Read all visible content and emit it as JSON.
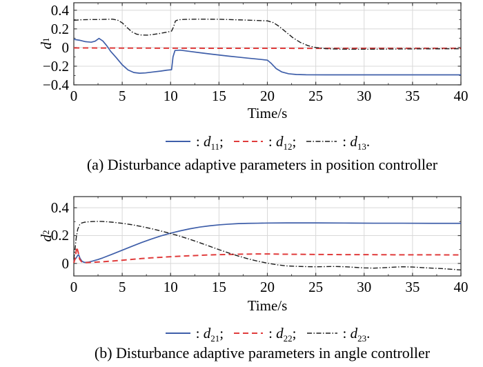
{
  "figure": {
    "background": "#ffffff"
  },
  "colors": {
    "axis": "#3a3a3a",
    "grid": "#d8d8d8",
    "text": "#000000",
    "series_blue": "#3e5ea9",
    "series_red": "#e03b3b",
    "series_black": "#1a1a1a"
  },
  "chart_data": [
    {
      "type": "line",
      "xlabel": "Time/s",
      "ylabel": "d1",
      "ylabel_base": "d",
      "ylabel_sub": "1",
      "caption": "(a) Disturbance adaptive parameters in position controller",
      "xlim": [
        0,
        40
      ],
      "ylim": [
        -0.4,
        0.48
      ],
      "xticks": [
        0,
        5,
        10,
        15,
        20,
        25,
        30,
        35,
        40
      ],
      "xtick_labels": [
        "0",
        "5",
        "10",
        "15",
        "20",
        "25",
        "30",
        "35",
        "40"
      ],
      "yticks": [
        -0.4,
        -0.2,
        0,
        0.2,
        0.4
      ],
      "ytick_labels": [
        "−0.4",
        "−0.2",
        "0",
        "0.2",
        "0.4"
      ],
      "x_minor_step": 2.5,
      "y_minor_step": 0.1,
      "grid": true,
      "legend_position": "below",
      "legend": [
        {
          "colon": ": ",
          "label": "d",
          "sub": "11",
          "punct": ";",
          "style": "solid",
          "color": "#3e5ea9"
        },
        {
          "colon": ": ",
          "label": "d",
          "sub": "12",
          "punct": ";",
          "style": "dashed",
          "color": "#e03b3b"
        },
        {
          "colon": ": ",
          "label": "d",
          "sub": "13",
          "punct": ".",
          "style": "dashdot",
          "color": "#1a1a1a"
        }
      ],
      "series": [
        {
          "name": "d11",
          "style": "solid",
          "color": "#3e5ea9",
          "width": 1.7,
          "points": [
            [
              0,
              0.088
            ],
            [
              0.6,
              0.078
            ],
            [
              1.2,
              0.063
            ],
            [
              1.8,
              0.057
            ],
            [
              2.2,
              0.068
            ],
            [
              2.6,
              0.098
            ],
            [
              3.0,
              0.07
            ],
            [
              3.4,
              0.02
            ],
            [
              3.8,
              -0.04
            ],
            [
              4.4,
              -0.11
            ],
            [
              5.0,
              -0.185
            ],
            [
              5.6,
              -0.24
            ],
            [
              6.2,
              -0.268
            ],
            [
              6.8,
              -0.275
            ],
            [
              7.4,
              -0.272
            ],
            [
              8.2,
              -0.262
            ],
            [
              9.0,
              -0.252
            ],
            [
              9.6,
              -0.243
            ],
            [
              10.1,
              -0.238
            ],
            [
              10.25,
              -0.1
            ],
            [
              10.45,
              -0.032
            ],
            [
              11,
              -0.028
            ],
            [
              12,
              -0.042
            ],
            [
              13,
              -0.055
            ],
            [
              14,
              -0.068
            ],
            [
              15,
              -0.08
            ],
            [
              16,
              -0.092
            ],
            [
              17,
              -0.103
            ],
            [
              18,
              -0.114
            ],
            [
              19,
              -0.124
            ],
            [
              20,
              -0.135
            ],
            [
              20.4,
              -0.17
            ],
            [
              20.9,
              -0.225
            ],
            [
              21.5,
              -0.262
            ],
            [
              22.2,
              -0.281
            ],
            [
              23,
              -0.289
            ],
            [
              24,
              -0.292
            ],
            [
              26,
              -0.293
            ],
            [
              30,
              -0.293
            ],
            [
              35,
              -0.293
            ],
            [
              40,
              -0.293
            ]
          ]
        },
        {
          "name": "d12",
          "style": "dashed",
          "color": "#e03b3b",
          "width": 2,
          "points": [
            [
              0,
              -0.004
            ],
            [
              5,
              -0.006
            ],
            [
              10,
              -0.007
            ],
            [
              15,
              -0.008
            ],
            [
              20,
              -0.008
            ],
            [
              25,
              -0.009
            ],
            [
              30,
              -0.009
            ],
            [
              35,
              -0.009
            ],
            [
              40,
              -0.009
            ]
          ]
        },
        {
          "name": "d13",
          "style": "dashdot",
          "color": "#1a1a1a",
          "width": 1.4,
          "points": [
            [
              0,
              0.292
            ],
            [
              0.8,
              0.298
            ],
            [
              1.6,
              0.3
            ],
            [
              2.4,
              0.3
            ],
            [
              3.2,
              0.302
            ],
            [
              4.0,
              0.304
            ],
            [
              4.5,
              0.295
            ],
            [
              5.0,
              0.265
            ],
            [
              5.5,
              0.215
            ],
            [
              6.0,
              0.168
            ],
            [
              6.5,
              0.143
            ],
            [
              7.0,
              0.134
            ],
            [
              7.6,
              0.133
            ],
            [
              8.2,
              0.14
            ],
            [
              9.0,
              0.153
            ],
            [
              9.6,
              0.165
            ],
            [
              10.1,
              0.176
            ],
            [
              10.3,
              0.22
            ],
            [
              10.5,
              0.285
            ],
            [
              10.8,
              0.298
            ],
            [
              11.5,
              0.302
            ],
            [
              13,
              0.304
            ],
            [
              15,
              0.303
            ],
            [
              17,
              0.297
            ],
            [
              19,
              0.29
            ],
            [
              20,
              0.286
            ],
            [
              20.6,
              0.268
            ],
            [
              21.2,
              0.228
            ],
            [
              21.9,
              0.168
            ],
            [
              22.6,
              0.108
            ],
            [
              23.4,
              0.055
            ],
            [
              24.2,
              0.02
            ],
            [
              25,
              0.0
            ],
            [
              26,
              -0.012
            ],
            [
              27.5,
              -0.017
            ],
            [
              30,
              -0.018
            ],
            [
              33,
              -0.016
            ],
            [
              36,
              -0.014
            ],
            [
              40,
              -0.013
            ]
          ]
        }
      ]
    },
    {
      "type": "line",
      "xlabel": "Time/s",
      "ylabel": "d2",
      "ylabel_base": "d",
      "ylabel_sub": "2",
      "caption": "(b) Disturbance adaptive parameters in angle controller",
      "xlim": [
        0,
        40
      ],
      "ylim": [
        -0.09,
        0.48
      ],
      "xticks": [
        0,
        5,
        10,
        15,
        20,
        25,
        30,
        35,
        40
      ],
      "xtick_labels": [
        "0",
        "5",
        "10",
        "15",
        "20",
        "25",
        "30",
        "35",
        "40"
      ],
      "yticks": [
        0,
        0.2,
        0.4
      ],
      "ytick_labels": [
        "0",
        "0.2",
        "0.4"
      ],
      "x_minor_step": 2.5,
      "y_minor_step": 0.1,
      "grid": true,
      "legend_position": "below",
      "legend": [
        {
          "colon": ": ",
          "label": "d",
          "sub": "21",
          "punct": ";",
          "style": "solid",
          "color": "#3e5ea9"
        },
        {
          "colon": ": ",
          "label": "d",
          "sub": "22",
          "punct": ";",
          "style": "dashed",
          "color": "#e03b3b"
        },
        {
          "colon": ": ",
          "label": "d",
          "sub": "23",
          "punct": ".",
          "style": "dashdot",
          "color": "#1a1a1a"
        }
      ],
      "series": [
        {
          "name": "d21",
          "style": "solid",
          "color": "#3e5ea9",
          "width": 1.7,
          "points": [
            [
              0,
              0.02
            ],
            [
              0.2,
              0.035
            ],
            [
              0.4,
              0.058
            ],
            [
              0.5,
              0.062
            ],
            [
              0.65,
              0.035
            ],
            [
              0.85,
              0.015
            ],
            [
              1.1,
              0.007
            ],
            [
              1.5,
              0.009
            ],
            [
              2,
              0.018
            ],
            [
              2.5,
              0.028
            ],
            [
              3,
              0.04
            ],
            [
              4,
              0.067
            ],
            [
              5,
              0.095
            ],
            [
              6,
              0.123
            ],
            [
              7,
              0.15
            ],
            [
              8,
              0.175
            ],
            [
              9,
              0.198
            ],
            [
              10,
              0.217
            ],
            [
              11,
              0.234
            ],
            [
              12,
              0.249
            ],
            [
              13,
              0.261
            ],
            [
              14,
              0.27
            ],
            [
              15,
              0.277
            ],
            [
              16,
              0.282
            ],
            [
              17,
              0.286
            ],
            [
              18,
              0.288
            ],
            [
              19,
              0.289
            ],
            [
              20,
              0.29
            ],
            [
              22,
              0.291
            ],
            [
              25,
              0.291
            ],
            [
              28,
              0.29
            ],
            [
              31,
              0.289
            ],
            [
              34,
              0.289
            ],
            [
              37,
              0.288
            ],
            [
              40,
              0.288
            ]
          ]
        },
        {
          "name": "d22",
          "style": "dashed",
          "color": "#e03b3b",
          "width": 2,
          "points": [
            [
              0,
              0.004
            ],
            [
              0.15,
              0.04
            ],
            [
              0.3,
              0.118
            ],
            [
              0.45,
              0.08
            ],
            [
              0.6,
              0.03
            ],
            [
              0.8,
              0.012
            ],
            [
              1.2,
              0.006
            ],
            [
              2,
              0.008
            ],
            [
              3,
              0.012
            ],
            [
              4,
              0.017
            ],
            [
              5,
              0.023
            ],
            [
              6,
              0.029
            ],
            [
              7,
              0.035
            ],
            [
              8,
              0.04
            ],
            [
              9,
              0.044
            ],
            [
              10,
              0.048
            ],
            [
              11,
              0.052
            ],
            [
              12,
              0.055
            ],
            [
              13,
              0.058
            ],
            [
              14,
              0.061
            ],
            [
              15,
              0.063
            ],
            [
              16,
              0.064
            ],
            [
              17,
              0.066
            ],
            [
              18,
              0.067
            ],
            [
              19,
              0.068
            ],
            [
              20,
              0.068
            ],
            [
              22,
              0.066
            ],
            [
              24,
              0.065
            ],
            [
              26,
              0.064
            ],
            [
              28,
              0.063
            ],
            [
              30,
              0.063
            ],
            [
              33,
              0.062
            ],
            [
              36,
              0.062
            ],
            [
              40,
              0.061
            ]
          ]
        },
        {
          "name": "d23",
          "style": "dashdot",
          "color": "#1a1a1a",
          "width": 1.4,
          "points": [
            [
              0,
              0.03
            ],
            [
              0.1,
              0.09
            ],
            [
              0.25,
              0.185
            ],
            [
              0.4,
              0.245
            ],
            [
              0.6,
              0.278
            ],
            [
              0.8,
              0.29
            ],
            [
              1.1,
              0.296
            ],
            [
              1.5,
              0.299
            ],
            [
              2,
              0.301
            ],
            [
              2.5,
              0.302
            ],
            [
              3,
              0.301
            ],
            [
              3.5,
              0.299
            ],
            [
              4,
              0.296
            ],
            [
              5,
              0.288
            ],
            [
              6,
              0.278
            ],
            [
              7,
              0.265
            ],
            [
              8,
              0.25
            ],
            [
              9,
              0.233
            ],
            [
              10,
              0.215
            ],
            [
              11,
              0.195
            ],
            [
              12,
              0.173
            ],
            [
              13,
              0.149
            ],
            [
              14,
              0.124
            ],
            [
              15,
              0.099
            ],
            [
              16,
              0.075
            ],
            [
              17,
              0.053
            ],
            [
              18,
              0.033
            ],
            [
              19,
              0.016
            ],
            [
              20,
              0.002
            ],
            [
              21,
              -0.01
            ],
            [
              22,
              -0.018
            ],
            [
              23,
              -0.021
            ],
            [
              24,
              -0.023
            ],
            [
              25,
              -0.024
            ],
            [
              26,
              -0.023
            ],
            [
              27,
              -0.022
            ],
            [
              28,
              -0.024
            ],
            [
              29,
              -0.028
            ],
            [
              30,
              -0.032
            ],
            [
              31,
              -0.034
            ],
            [
              32,
              -0.031
            ],
            [
              33,
              -0.027
            ],
            [
              34,
              -0.024
            ],
            [
              35,
              -0.026
            ],
            [
              36,
              -0.03
            ],
            [
              37,
              -0.034
            ],
            [
              38,
              -0.037
            ],
            [
              39,
              -0.042
            ],
            [
              40,
              -0.047
            ]
          ]
        }
      ]
    }
  ]
}
